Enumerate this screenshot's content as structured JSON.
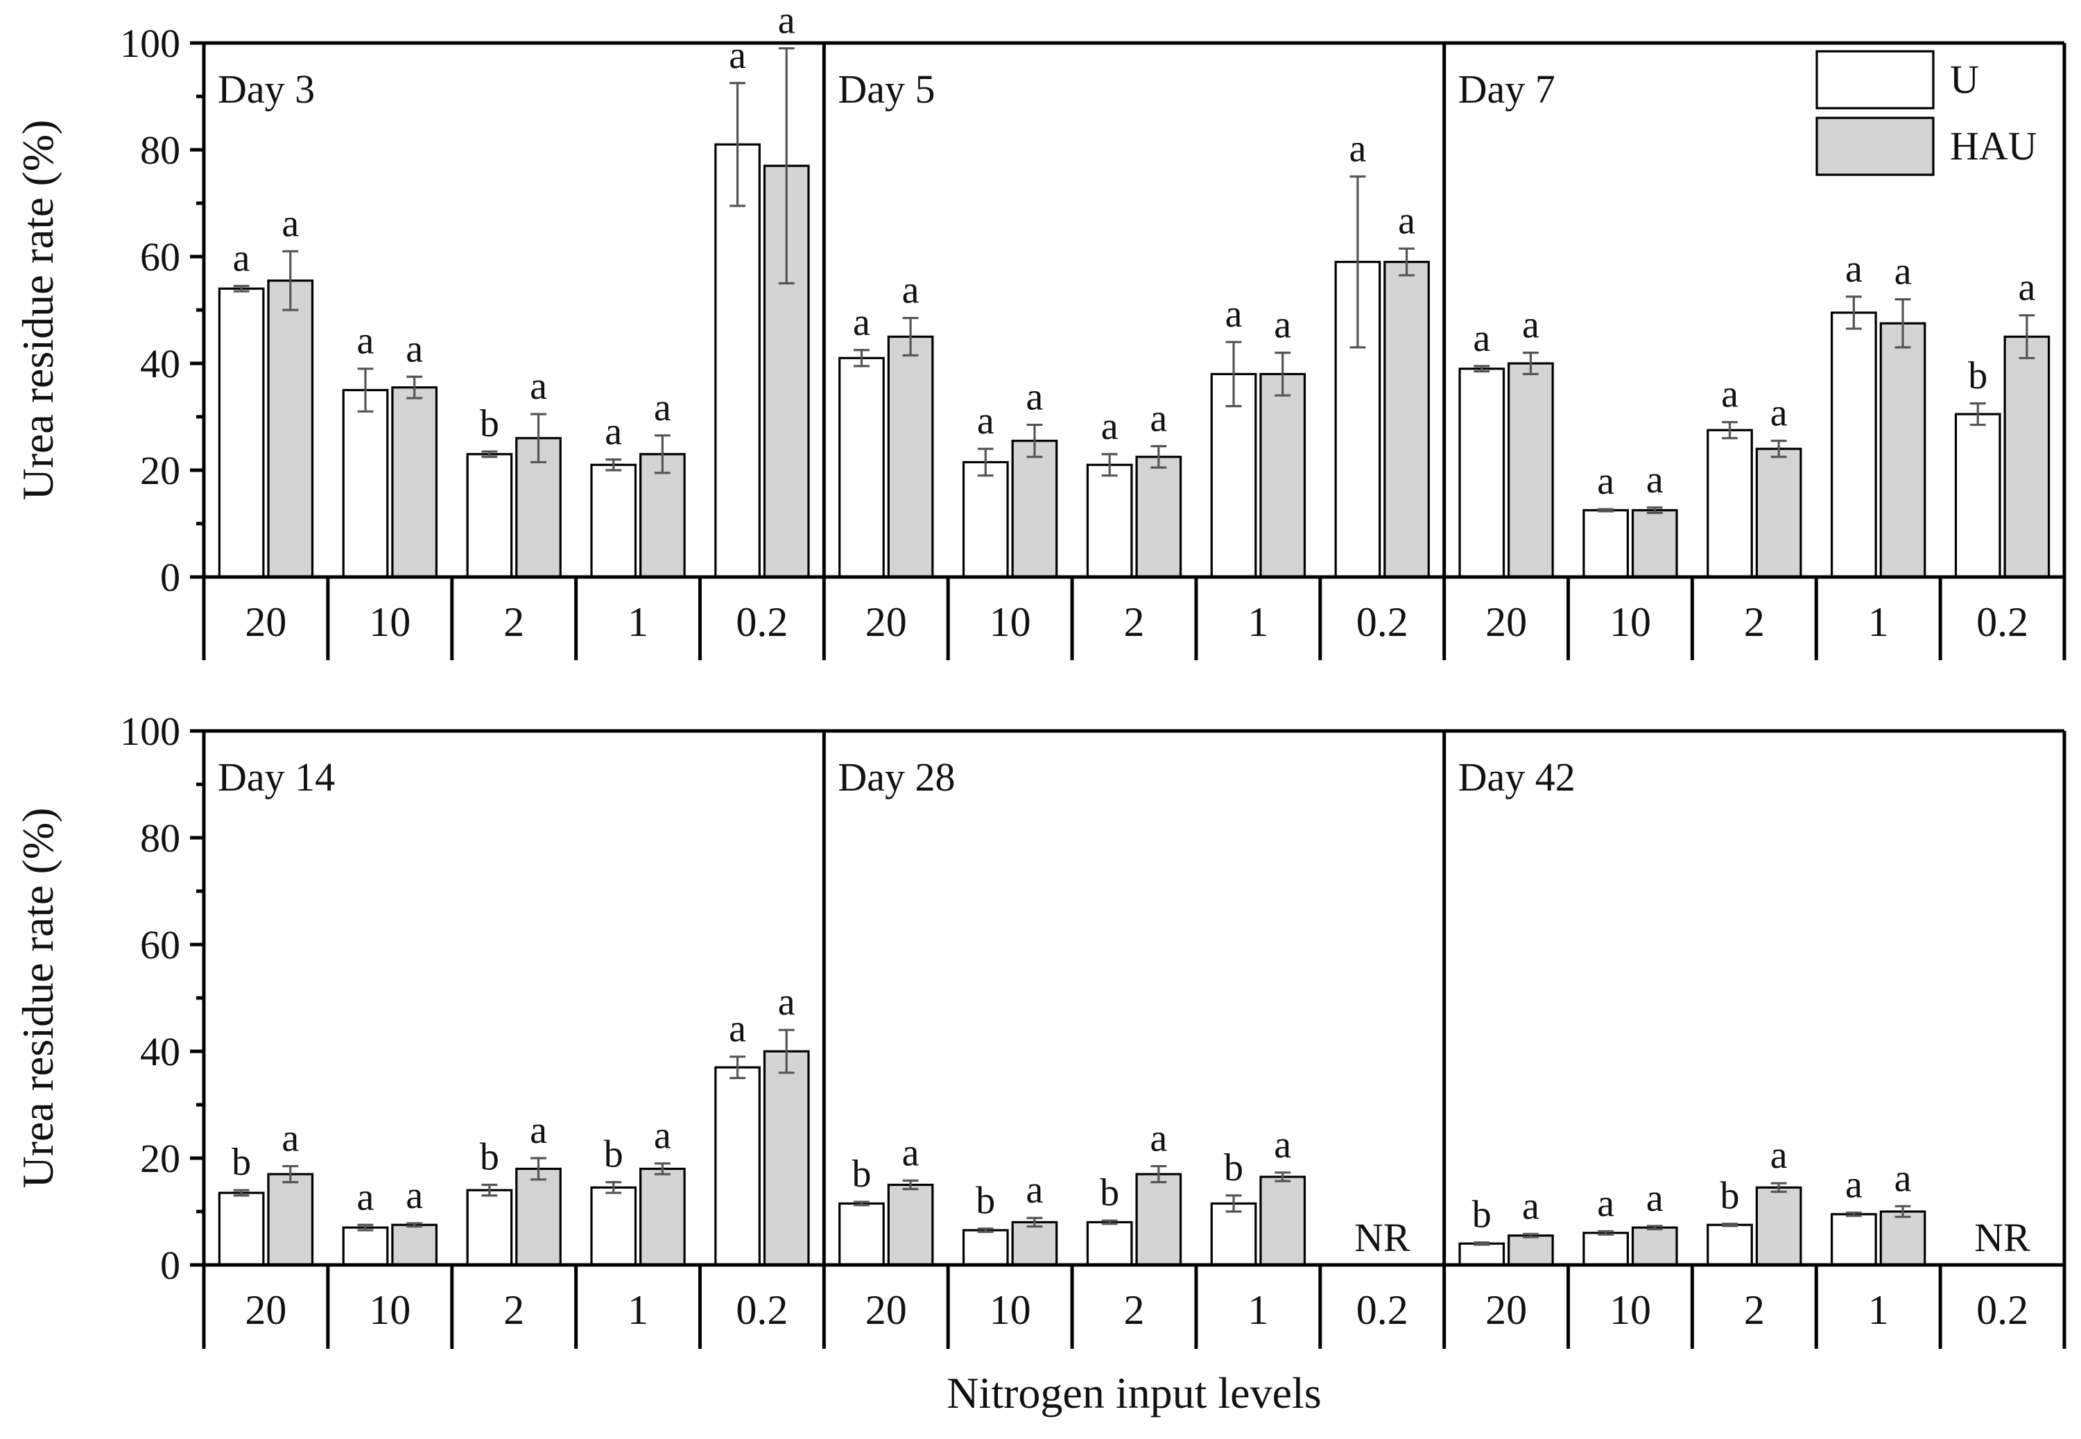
{
  "chart_data": {
    "type": "bar",
    "ylabel": "Urea residue rate (%)",
    "xlabel": "Nitrogen input levels",
    "ylim": [
      0,
      100
    ],
    "yticks": [
      0,
      20,
      40,
      60,
      80,
      100
    ],
    "categories": [
      "20",
      "10",
      "2",
      "1",
      "0.2"
    ],
    "legend": {
      "position": "top-right",
      "items": [
        {
          "name": "U",
          "color": "#ffffff"
        },
        {
          "name": "HAU",
          "color": "#d4d4d4"
        }
      ]
    },
    "colors": {
      "U": "#ffffff",
      "HAU": "#d4d4d4",
      "axis": "#000000",
      "error_bar": "#555555"
    },
    "not_reported_label": "NR",
    "panels": [
      {
        "title": "Day 3",
        "series": [
          {
            "name": "U",
            "values": [
              54,
              35,
              23,
              21,
              81
            ],
            "errors": [
              0.5,
              4,
              0.5,
              1,
              11.5
            ],
            "sig": [
              "a",
              "a",
              "b",
              "a",
              "a"
            ]
          },
          {
            "name": "HAU",
            "values": [
              55.5,
              35.5,
              26,
              23,
              77
            ],
            "errors": [
              5.5,
              2,
              4.5,
              3.5,
              22
            ],
            "sig": [
              "a",
              "a",
              "a",
              "a",
              "a"
            ]
          }
        ],
        "nr": []
      },
      {
        "title": "Day 5",
        "series": [
          {
            "name": "U",
            "values": [
              41,
              21.5,
              21,
              38,
              59
            ],
            "errors": [
              1.5,
              2.5,
              2,
              6,
              16
            ],
            "sig": [
              "a",
              "a",
              "a",
              "a",
              "a"
            ]
          },
          {
            "name": "HAU",
            "values": [
              45,
              25.5,
              22.5,
              38,
              59
            ],
            "errors": [
              3.5,
              3,
              2,
              4,
              2.5
            ],
            "sig": [
              "a",
              "a",
              "a",
              "a",
              "a"
            ]
          }
        ],
        "nr": []
      },
      {
        "title": "Day 7",
        "series": [
          {
            "name": "U",
            "values": [
              39,
              12.5,
              27.5,
              49.5,
              30.5
            ],
            "errors": [
              0.5,
              0.2,
              1.5,
              3,
              2
            ],
            "sig": [
              "a",
              "a",
              "a",
              "a",
              "b"
            ]
          },
          {
            "name": "HAU",
            "values": [
              40,
              12.5,
              24,
              47.5,
              45
            ],
            "errors": [
              2,
              0.5,
              1.5,
              4.5,
              4
            ],
            "sig": [
              "a",
              "a",
              "a",
              "a",
              "a"
            ]
          }
        ],
        "nr": []
      },
      {
        "title": "Day 14",
        "series": [
          {
            "name": "U",
            "values": [
              13.5,
              7,
              14,
              14.5,
              37
            ],
            "errors": [
              0.5,
              0.5,
              1,
              1,
              2
            ],
            "sig": [
              "b",
              "a",
              "b",
              "b",
              "a"
            ]
          },
          {
            "name": "HAU",
            "values": [
              17,
              7.5,
              18,
              18,
              40
            ],
            "errors": [
              1.5,
              0.3,
              2,
              1,
              4
            ],
            "sig": [
              "a",
              "a",
              "a",
              "a",
              "a"
            ]
          }
        ],
        "nr": []
      },
      {
        "title": "Day 28",
        "series": [
          {
            "name": "U",
            "values": [
              11.5,
              6.5,
              8,
              11.5,
              null
            ],
            "errors": [
              0.3,
              0.3,
              0.3,
              1.5,
              null
            ],
            "sig": [
              "b",
              "b",
              "b",
              "b",
              null
            ]
          },
          {
            "name": "HAU",
            "values": [
              15,
              8,
              17,
              16.5,
              null
            ],
            "errors": [
              0.8,
              0.8,
              1.5,
              0.8,
              null
            ],
            "sig": [
              "a",
              "a",
              "a",
              "a",
              null
            ]
          }
        ],
        "nr": [
          "0.2"
        ]
      },
      {
        "title": "Day 42",
        "series": [
          {
            "name": "U",
            "values": [
              4,
              6,
              7.5,
              9.5,
              null
            ],
            "errors": [
              0.2,
              0.3,
              0.2,
              0.3,
              null
            ],
            "sig": [
              "b",
              "a",
              "b",
              "a",
              null
            ]
          },
          {
            "name": "HAU",
            "values": [
              5.5,
              7,
              14.5,
              10,
              null
            ],
            "errors": [
              0.3,
              0.3,
              0.8,
              1,
              null
            ],
            "sig": [
              "a",
              "a",
              "a",
              "a",
              null
            ]
          }
        ],
        "nr": [
          "0.2"
        ]
      }
    ]
  }
}
